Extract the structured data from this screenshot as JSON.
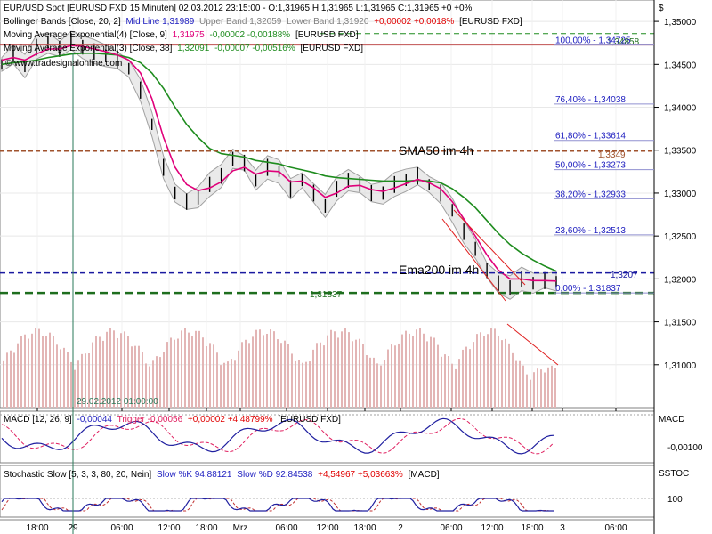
{
  "header": {
    "line1": "EUR/USD Spot [EURUSD FXD  15 Minuten] 02.03.2012 23:15:00 - O:1,31965 H:1,31965 L:1,31965 C:1,31965 +0 +0%",
    "bb_name": "Bollinger Bands [Close, 20, 2]",
    "bb_mid": "Mid Line 1,31989",
    "bb_upper": "Upper Band 1,32059",
    "bb_lower": "Lower Band 1,31920",
    "bb_change": "+0,00002 +0,0018%",
    "bb_sym": "[EURUSD FXD]",
    "ema9_name": "Moving Average Exponential(4) [Close, 9]",
    "ema9_val": "1,31975",
    "ema9_change": "-0,00002 -0,00188%",
    "ema9_sym": "[EURUSD FXD]",
    "ema38_name": "Moving Average Exponential(3) [Close, 38]",
    "ema38_val": "1,32091",
    "ema38_change": "-0,00007 -0,00516%",
    "ema38_sym": "[EURUSD FXD]",
    "copyright": "© www.tradesignalonline.com"
  },
  "currency_symbol": "$",
  "annotations": {
    "sma50": "SMA50 im 4h",
    "ema200": "Ema200 im 4h",
    "level_high": "1,34858",
    "level_ema200": "1,3207",
    "level_support": "1,31837",
    "date_marker": "29.02.2012 01:00:00",
    "sma50_value": "1,3349"
  },
  "fib_levels": [
    {
      "label": "100,00% - 1,34725",
      "value": 1.34725
    },
    {
      "label": "76,40% - 1,34038",
      "value": 1.34038
    },
    {
      "label": "61,80% - 1,33614",
      "value": 1.33614
    },
    {
      "label": "50,00% - 1,33273",
      "value": 1.33273
    },
    {
      "label": "38,20% - 1,32933",
      "value": 1.32933
    },
    {
      "label": "23,60% - 1,32513",
      "value": 1.32513
    },
    {
      "label": "0,00% - 1,31837",
      "value": 1.31837
    }
  ],
  "macd": {
    "name": "MACD [12, 26, 9]",
    "value": "-0,00044",
    "trigger": "Trigger -0,00056",
    "change": "+0,00002 +4,48799%",
    "sym": "[EURUSD FXD]",
    "axis_title": "MACD",
    "axis_tick": "-0,00100"
  },
  "stoch": {
    "name": "Stochastic Slow [5, 3, 3, 80, 20, Nein]",
    "k": "Slow %K 94,88121",
    "d": "Slow %D 92,84538",
    "change": "+4,54967 +5,03663%",
    "sym": "[MACD]",
    "axis_title": "SSTOC",
    "axis_tick": "100"
  },
  "time_axis": [
    "18:00",
    "29",
    "06:00",
    "12:00",
    "18:00",
    "Mrz",
    "06:00",
    "12:00",
    "18:00",
    "2",
    "06:00",
    "12:00",
    "18:00",
    "3",
    "06:00"
  ],
  "colors": {
    "ema9": "#e0007a",
    "ema38": "#1e8c1e",
    "bb": "#a0a0a0",
    "fib_text": "#2020c0",
    "sma50_line": "#a0522d",
    "ema200_line": "#1a1aa0",
    "support_line": "#1e6e1e",
    "trend_red": "#e02020",
    "macd_line": "#2020a0",
    "macd_trigger": "#e02060"
  },
  "chart_data": {
    "type": "line",
    "title": "EUR/USD Spot [EURUSD FXD 15 Minuten]",
    "ylabel": "$",
    "ylim": [
      1.305,
      1.3525
    ],
    "y_ticks": [
      "1,35000",
      "1,34500",
      "1,34000",
      "1,33500",
      "1,33000",
      "1,32500",
      "1,32000",
      "1,31500",
      "1,31000"
    ],
    "series": [
      {
        "name": "Close",
        "values": [
          1.345,
          1.3462,
          1.3448,
          1.347,
          1.3475,
          1.3468,
          1.3478,
          1.347,
          1.3465,
          1.346,
          1.3455,
          1.3445,
          1.342,
          1.338,
          1.333,
          1.33,
          1.329,
          1.3295,
          1.331,
          1.332,
          1.334,
          1.3335,
          1.3315,
          1.333,
          1.3325,
          1.3305,
          1.3315,
          1.33,
          1.3285,
          1.3305,
          1.3315,
          1.331,
          1.33,
          1.33,
          1.331,
          1.3315,
          1.332,
          1.331,
          1.33,
          1.328,
          1.3255,
          1.3235,
          1.321,
          1.3195,
          1.319,
          1.32,
          1.3195,
          1.3198,
          1.3197
        ]
      },
      {
        "name": "EMA 9",
        "values": [
          1.3455,
          1.3458,
          1.3455,
          1.3462,
          1.3468,
          1.3468,
          1.3472,
          1.3471,
          1.3468,
          1.3465,
          1.3461,
          1.3455,
          1.344,
          1.341,
          1.3365,
          1.333,
          1.331,
          1.3303,
          1.3306,
          1.3313,
          1.3326,
          1.333,
          1.3322,
          1.3326,
          1.3325,
          1.3313,
          1.3314,
          1.3306,
          1.3295,
          1.33,
          1.3308,
          1.3309,
          1.3304,
          1.3302,
          1.3306,
          1.3311,
          1.3316,
          1.3312,
          1.3305,
          1.329,
          1.327,
          1.325,
          1.3228,
          1.321,
          1.32,
          1.32,
          1.3198,
          1.3198,
          1.31975
        ]
      },
      {
        "name": "EMA 38",
        "values": [
          1.345,
          1.3452,
          1.3453,
          1.3455,
          1.3458,
          1.346,
          1.3462,
          1.3463,
          1.3463,
          1.3462,
          1.3461,
          1.3458,
          1.3452,
          1.344,
          1.3422,
          1.34,
          1.338,
          1.3365,
          1.3352,
          1.3346,
          1.3344,
          1.3342,
          1.3338,
          1.3336,
          1.3334,
          1.333,
          1.3327,
          1.3324,
          1.332,
          1.3318,
          1.3317,
          1.3316,
          1.3315,
          1.3314,
          1.3314,
          1.3314,
          1.3315,
          1.3314,
          1.3312,
          1.3305,
          1.3295,
          1.3283,
          1.3268,
          1.3253,
          1.324,
          1.323,
          1.3222,
          1.3215,
          1.32091
        ]
      }
    ]
  }
}
